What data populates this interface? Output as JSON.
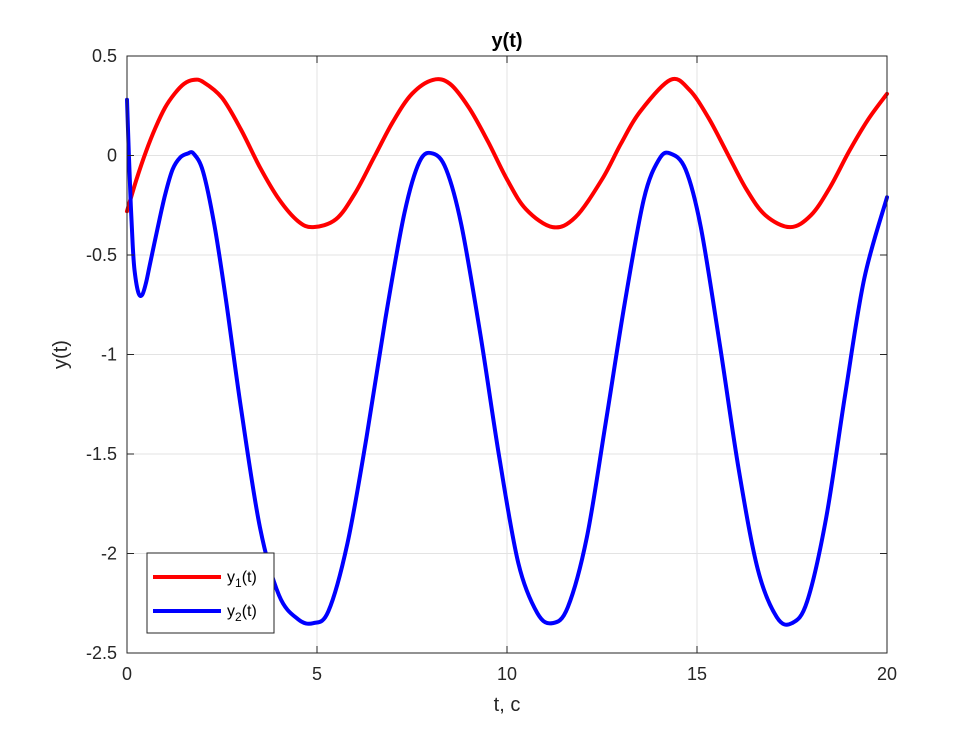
{
  "chart_data": {
    "type": "line",
    "title": "y(t)",
    "xlabel": "t, c",
    "ylabel": "y(t)",
    "xlim": [
      0,
      20
    ],
    "ylim": [
      -2.5,
      0.5
    ],
    "xticks": [
      0,
      5,
      10,
      15,
      20
    ],
    "yticks": [
      -2.5,
      -2,
      -1.5,
      -1,
      -0.5,
      0,
      0.5
    ],
    "xtick_labels": [
      "0",
      "5",
      "10",
      "15",
      "20"
    ],
    "ytick_labels": [
      "-2.5",
      "-2",
      "-1.5",
      "-1",
      "-0.5",
      "0",
      "0.5"
    ],
    "grid": true,
    "legend_position": "bottom-left",
    "series": [
      {
        "legend_base": "y",
        "legend_sub": "1",
        "legend_suffix": "(t)",
        "color": "#ff0000",
        "x": [
          0,
          0.25,
          0.5,
          0.75,
          1.0,
          1.25,
          1.5,
          1.75,
          2.0,
          2.5,
          3.0,
          3.5,
          4.0,
          4.5,
          4.9,
          5.5,
          6.0,
          6.5,
          7.0,
          7.5,
          8.05,
          8.5,
          9.0,
          9.5,
          10.0,
          10.5,
          11.2,
          11.8,
          12.5,
          13.0,
          13.5,
          14.3,
          14.8,
          15.3,
          15.8,
          16.3,
          16.8,
          17.45,
          18.0,
          18.5,
          19.0,
          19.5,
          20.0
        ],
        "y": [
          -0.28,
          -0.12,
          0.02,
          0.14,
          0.24,
          0.31,
          0.36,
          0.38,
          0.37,
          0.29,
          0.13,
          -0.06,
          -0.22,
          -0.33,
          -0.36,
          -0.32,
          -0.19,
          -0.01,
          0.17,
          0.31,
          0.38,
          0.36,
          0.24,
          0.07,
          -0.12,
          -0.27,
          -0.36,
          -0.31,
          -0.12,
          0.06,
          0.22,
          0.38,
          0.33,
          0.19,
          0.01,
          -0.17,
          -0.3,
          -0.36,
          -0.3,
          -0.16,
          0.02,
          0.18,
          0.31
        ]
      },
      {
        "legend_base": "y",
        "legend_sub": "2",
        "legend_suffix": "(t)",
        "color": "#0000ff",
        "x": [
          0,
          0.05,
          0.1,
          0.15,
          0.2,
          0.3,
          0.4,
          0.5,
          0.6,
          0.8,
          1.0,
          1.2,
          1.4,
          1.6,
          1.75,
          2.0,
          2.3,
          2.6,
          3.0,
          3.5,
          4.0,
          4.5,
          4.9,
          5.3,
          5.8,
          6.3,
          6.8,
          7.3,
          7.7,
          8.05,
          8.4,
          8.8,
          9.3,
          9.8,
          10.3,
          10.8,
          11.2,
          11.6,
          12.1,
          12.6,
          13.1,
          13.6,
          14.0,
          14.3,
          14.7,
          15.1,
          15.6,
          16.1,
          16.6,
          17.1,
          17.5,
          17.9,
          18.4,
          18.9,
          19.4,
          20.0
        ],
        "y": [
          0.28,
          0.0,
          -0.25,
          -0.45,
          -0.58,
          -0.69,
          -0.7,
          -0.64,
          -0.55,
          -0.37,
          -0.2,
          -0.07,
          -0.01,
          0.01,
          0.01,
          -0.08,
          -0.35,
          -0.72,
          -1.27,
          -1.87,
          -2.21,
          -2.33,
          -2.35,
          -2.29,
          -1.95,
          -1.42,
          -0.82,
          -0.29,
          -0.03,
          0.01,
          -0.07,
          -0.35,
          -0.9,
          -1.52,
          -2.05,
          -2.3,
          -2.35,
          -2.27,
          -1.92,
          -1.34,
          -0.74,
          -0.22,
          -0.02,
          0.01,
          -0.07,
          -0.36,
          -0.95,
          -1.58,
          -2.08,
          -2.32,
          -2.35,
          -2.24,
          -1.82,
          -1.2,
          -0.62,
          -0.21
        ]
      }
    ]
  }
}
